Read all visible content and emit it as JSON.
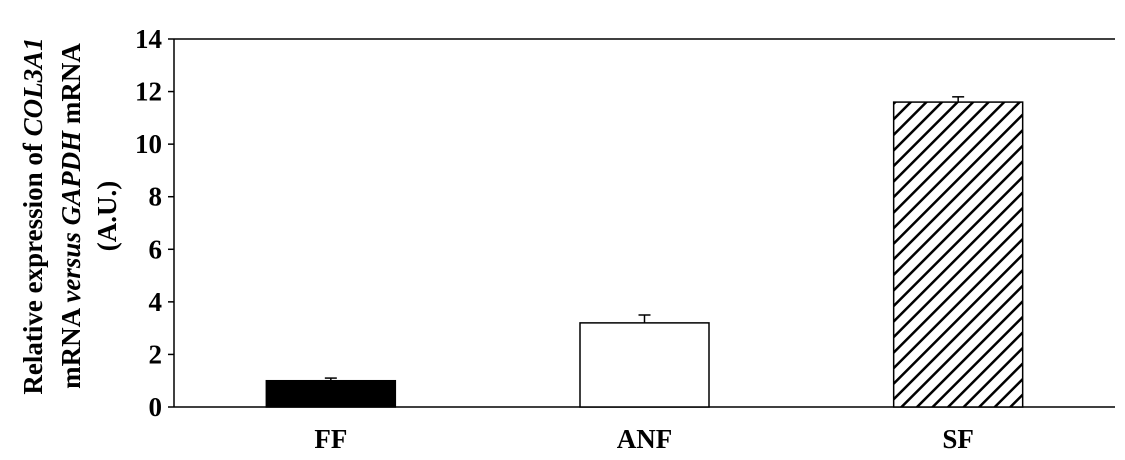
{
  "chart_data": {
    "type": "bar",
    "categories": [
      "FF",
      "ANF",
      "SF"
    ],
    "values": [
      1.0,
      3.2,
      11.6
    ],
    "errors": [
      0.1,
      0.3,
      0.2
    ],
    "bar_fills": [
      "solid-black",
      "white",
      "diagonal-hatch"
    ],
    "ylim": [
      0,
      14
    ],
    "yticks": [
      0,
      2,
      4,
      6,
      8,
      10,
      12,
      14
    ],
    "ytick_labels": [
      "0",
      "2",
      "4",
      "6",
      "8",
      "10",
      "12",
      "14"
    ],
    "xlabel": "",
    "ylabel_lines": [
      [
        {
          "text": "Relative expression of ",
          "italic": false
        },
        {
          "text": "COL3A1",
          "italic": true
        }
      ],
      [
        {
          "text": "mRNA ",
          "italic": false
        },
        {
          "text": "versus",
          "italic": true
        },
        {
          "text": " ",
          "italic": false
        },
        {
          "text": "GAPDH",
          "italic": true
        },
        {
          "text": " mRNA",
          "italic": false
        }
      ],
      [
        {
          "text": "(A.U.)",
          "italic": false
        }
      ]
    ],
    "title": "",
    "grid": false,
    "colors": {
      "bar_stroke": "#000000",
      "solid_fill": "#000000",
      "hatch": "#000000",
      "axis": "#000000"
    }
  }
}
